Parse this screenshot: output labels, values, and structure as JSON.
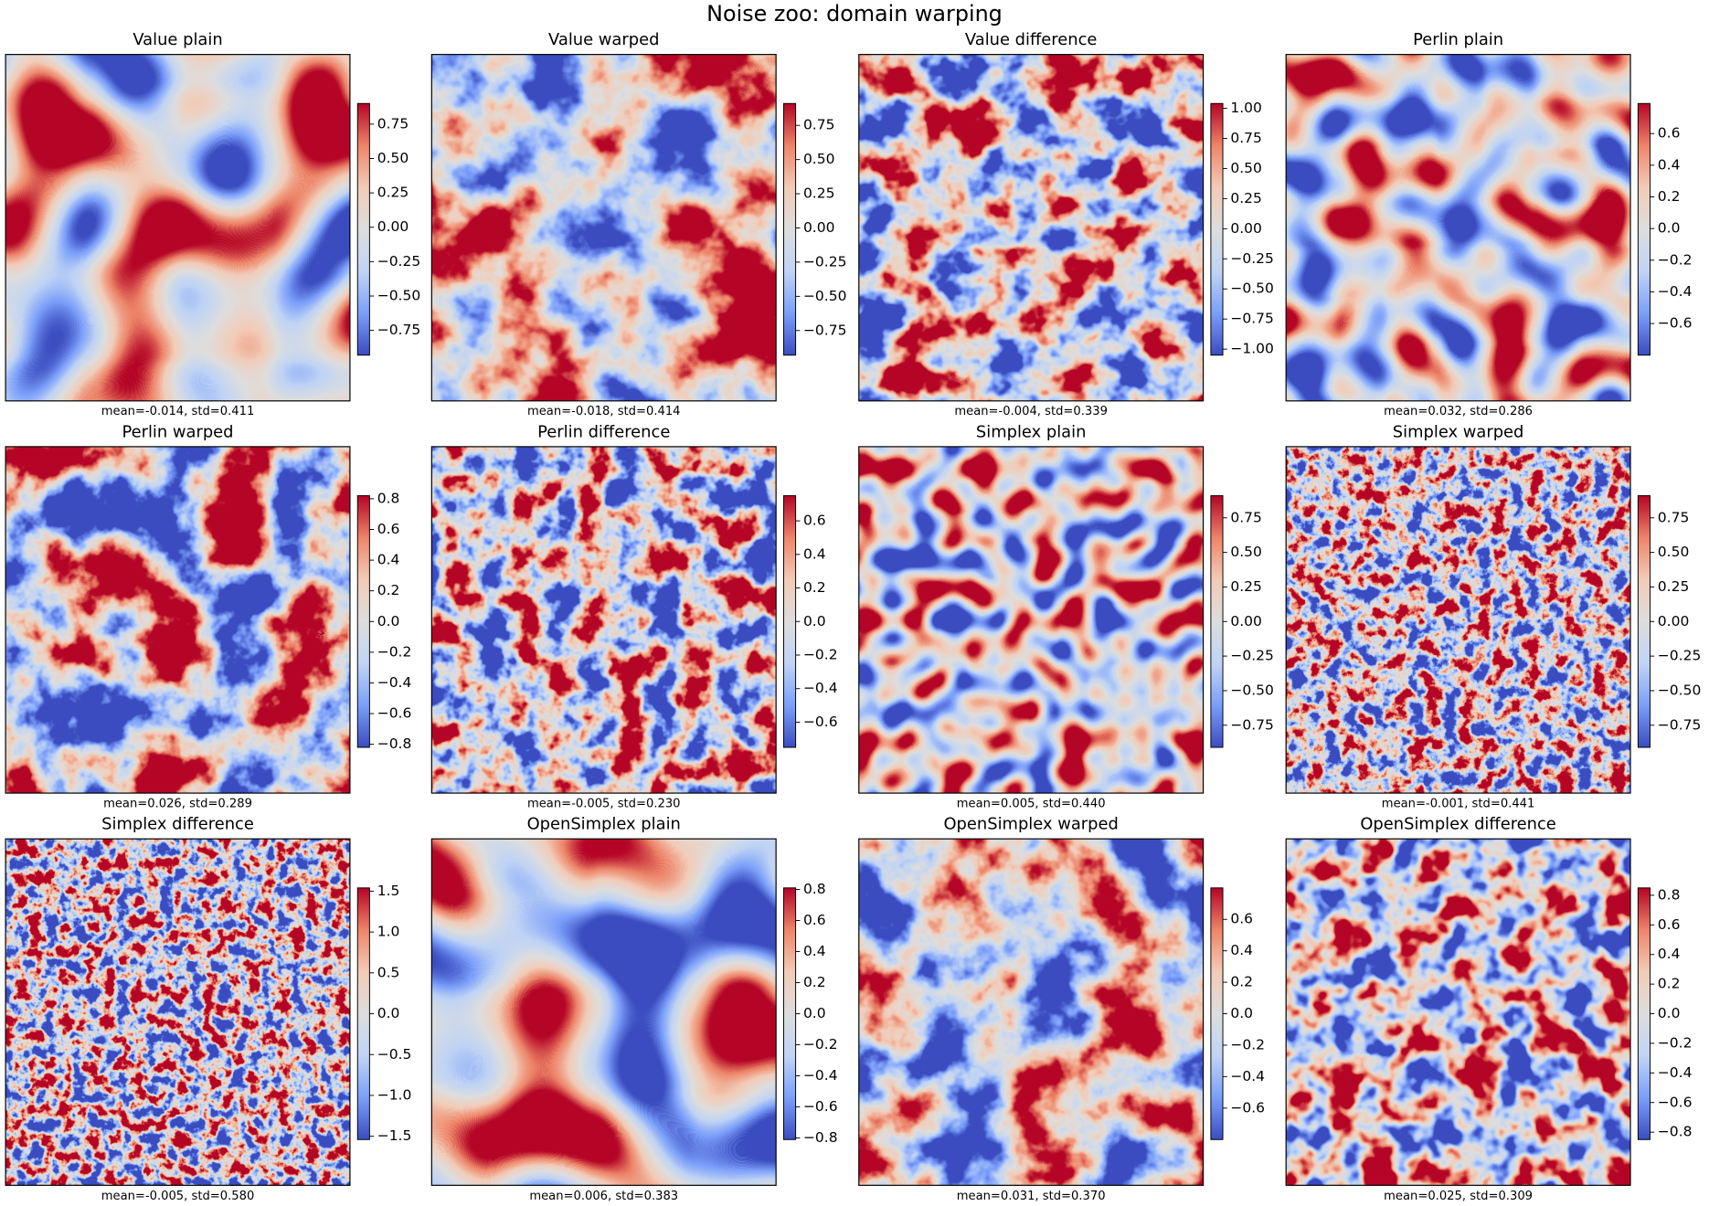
{
  "title": "Noise zoo: domain warping",
  "chart_data": [
    {
      "type": "heatmap",
      "title": "Value plain",
      "annotation": "mean=-0.014, std=0.411",
      "colormap": "coolwarm",
      "clim": [
        -0.93,
        0.9
      ],
      "cticks": [
        0.75,
        {
          "value": 0.5,
          "label": "0.50"
        },
        0.25,
        {
          "value": 0,
          "label": "0.00"
        },
        {
          "value": -0.25,
          "label": "−0.25"
        },
        {
          "value": -0.5,
          "label": "−0.50"
        },
        {
          "value": -0.75,
          "label": "−0.75"
        }
      ]
    },
    {
      "type": "heatmap",
      "title": "Value warped",
      "annotation": "mean=-0.018, std=0.414",
      "colormap": "coolwarm",
      "clim": [
        -0.93,
        0.91
      ],
      "cticks": [
        0.75,
        {
          "value": 0.5,
          "label": "0.50"
        },
        0.25,
        {
          "value": 0,
          "label": "0.00"
        },
        {
          "value": -0.25,
          "label": "−0.25"
        },
        {
          "value": -0.5,
          "label": "−0.50"
        },
        {
          "value": -0.75,
          "label": "−0.75"
        }
      ]
    },
    {
      "type": "heatmap",
      "title": "Value difference",
      "annotation": "mean=-0.004, std=0.339",
      "colormap": "coolwarm",
      "clim": [
        -1.05,
        1.04
      ],
      "cticks": [
        {
          "value": 1,
          "label": "1.00"
        },
        0.75,
        {
          "value": 0.5,
          "label": "0.50"
        },
        0.25,
        {
          "value": 0,
          "label": "0.00"
        },
        {
          "value": -0.25,
          "label": "−0.25"
        },
        {
          "value": -0.5,
          "label": "−0.50"
        },
        {
          "value": -0.75,
          "label": "−0.75"
        },
        {
          "value": -1,
          "label": "−1.00"
        }
      ]
    },
    {
      "type": "heatmap",
      "title": "Perlin plain",
      "annotation": "mean=0.032, std=0.286",
      "colormap": "coolwarm",
      "clim": [
        -0.8,
        0.79
      ],
      "cticks": [
        0.6,
        0.4,
        0.2,
        {
          "value": 0,
          "label": "0.0"
        },
        {
          "value": -0.2,
          "label": "−0.2"
        },
        {
          "value": -0.4,
          "label": "−0.4"
        },
        {
          "value": -0.6,
          "label": "−0.6"
        }
      ]
    },
    {
      "type": "heatmap",
      "title": "Perlin warped",
      "annotation": "mean=0.026, std=0.289",
      "colormap": "coolwarm",
      "clim": [
        -0.82,
        0.82
      ],
      "cticks": [
        0.8,
        0.6,
        0.4,
        0.2,
        {
          "value": 0,
          "label": "0.0"
        },
        {
          "value": -0.2,
          "label": "−0.2"
        },
        {
          "value": -0.4,
          "label": "−0.4"
        },
        {
          "value": -0.6,
          "label": "−0.6"
        },
        {
          "value": -0.8,
          "label": "−0.8"
        }
      ]
    },
    {
      "type": "heatmap",
      "title": "Perlin difference",
      "annotation": "mean=-0.005, std=0.230",
      "colormap": "coolwarm",
      "clim": [
        -0.75,
        0.75
      ],
      "cticks": [
        0.6,
        0.4,
        0.2,
        {
          "value": 0,
          "label": "0.0"
        },
        {
          "value": -0.2,
          "label": "−0.2"
        },
        {
          "value": -0.4,
          "label": "−0.4"
        },
        {
          "value": -0.6,
          "label": "−0.6"
        }
      ]
    },
    {
      "type": "heatmap",
      "title": "Simplex plain",
      "annotation": "mean=0.005, std=0.440",
      "colormap": "coolwarm",
      "clim": [
        -0.91,
        0.91
      ],
      "cticks": [
        0.75,
        {
          "value": 0.5,
          "label": "0.50"
        },
        0.25,
        {
          "value": 0,
          "label": "0.00"
        },
        {
          "value": -0.25,
          "label": "−0.25"
        },
        {
          "value": -0.5,
          "label": "−0.50"
        },
        {
          "value": -0.75,
          "label": "−0.75"
        }
      ]
    },
    {
      "type": "heatmap",
      "title": "Simplex warped",
      "annotation": "mean=-0.001, std=0.441",
      "colormap": "coolwarm",
      "clim": [
        -0.91,
        0.91
      ],
      "cticks": [
        0.75,
        {
          "value": 0.5,
          "label": "0.50"
        },
        0.25,
        {
          "value": 0,
          "label": "0.00"
        },
        {
          "value": -0.25,
          "label": "−0.25"
        },
        {
          "value": -0.5,
          "label": "−0.50"
        },
        {
          "value": -0.75,
          "label": "−0.75"
        }
      ]
    },
    {
      "type": "heatmap",
      "title": "Simplex difference",
      "annotation": "mean=-0.005, std=0.580",
      "colormap": "coolwarm",
      "clim": [
        -1.54,
        1.54
      ],
      "cticks": [
        1.5,
        {
          "value": 1,
          "label": "1.0"
        },
        0.5,
        {
          "value": 0,
          "label": "0.0"
        },
        {
          "value": -0.5,
          "label": "−0.5"
        },
        {
          "value": -1,
          "label": "−1.0"
        },
        {
          "value": -1.5,
          "label": "−1.5"
        }
      ]
    },
    {
      "type": "heatmap",
      "title": "OpenSimplex plain",
      "annotation": "mean=0.006, std=0.383",
      "colormap": "coolwarm",
      "clim": [
        -0.81,
        0.81
      ],
      "cticks": [
        0.8,
        0.6,
        0.4,
        0.2,
        {
          "value": 0,
          "label": "0.0"
        },
        {
          "value": -0.2,
          "label": "−0.2"
        },
        {
          "value": -0.4,
          "label": "−0.4"
        },
        {
          "value": -0.6,
          "label": "−0.6"
        },
        {
          "value": -0.8,
          "label": "−0.8"
        }
      ]
    },
    {
      "type": "heatmap",
      "title": "OpenSimplex warped",
      "annotation": "mean=0.031, std=0.370",
      "colormap": "coolwarm",
      "clim": [
        -0.8,
        0.8
      ],
      "cticks": [
        0.6,
        0.4,
        0.2,
        {
          "value": 0,
          "label": "0.0"
        },
        {
          "value": -0.2,
          "label": "−0.2"
        },
        {
          "value": -0.4,
          "label": "−0.4"
        },
        {
          "value": -0.6,
          "label": "−0.6"
        }
      ]
    },
    {
      "type": "heatmap",
      "title": "OpenSimplex difference",
      "annotation": "mean=0.025, std=0.309",
      "colormap": "coolwarm",
      "clim": [
        -0.85,
        0.85
      ],
      "cticks": [
        0.8,
        0.6,
        0.4,
        0.2,
        {
          "value": 0,
          "label": "0.0"
        },
        {
          "value": -0.2,
          "label": "−0.2"
        },
        {
          "value": -0.4,
          "label": "−0.4"
        },
        {
          "value": -0.6,
          "label": "−0.6"
        },
        {
          "value": -0.8,
          "label": "−0.8"
        }
      ]
    }
  ]
}
